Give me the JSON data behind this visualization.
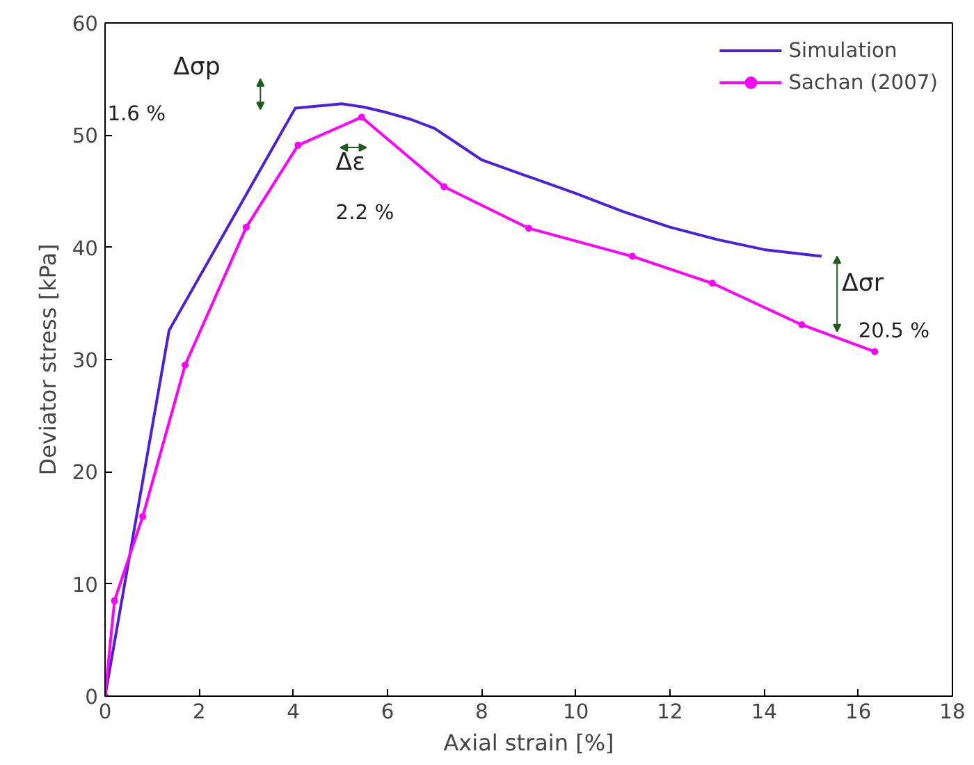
{
  "chart_data": {
    "type": "line",
    "xlabel": "Axial strain [%]",
    "ylabel": "Deviator stress [kPa]",
    "xlim": [
      0,
      18
    ],
    "ylim": [
      0,
      60
    ],
    "xticks": [
      0,
      2,
      4,
      6,
      8,
      10,
      12,
      14,
      16,
      18
    ],
    "yticks": [
      0,
      10,
      20,
      30,
      40,
      50,
      60
    ],
    "grid": false,
    "legend": "top right",
    "series": [
      {
        "name": "Simulation",
        "color": "#4b1fe0",
        "marker": "none",
        "x": [
          0,
          1.36,
          4.04,
          5.03,
          5.5,
          6,
          6.5,
          7,
          7.5,
          8,
          9,
          10,
          11,
          12,
          13,
          14,
          15.22
        ],
        "values": [
          0,
          32.6,
          52.4,
          52.8,
          52.5,
          52.0,
          51.4,
          50.6,
          49.2,
          47.8,
          46.3,
          44.8,
          43.2,
          41.8,
          40.7,
          39.8,
          39.2
        ]
      },
      {
        "name": "Sachan (2007)",
        "color": "#ff00ff",
        "marker": "circle",
        "x": [
          0,
          0.2,
          0.8,
          1.7,
          3,
          4.1,
          5.45,
          7.2,
          9,
          11.2,
          12.9,
          14.8,
          16.35
        ],
        "values": [
          0,
          8.5,
          16,
          29.5,
          41.8,
          49.1,
          51.6,
          45.4,
          41.7,
          39.2,
          36.8,
          33.1,
          30.7
        ]
      }
    ],
    "annotations": [
      "Δσp",
      "1.6 %",
      "Δε",
      "2.2 %",
      "Δσr",
      "20.5 %"
    ]
  }
}
